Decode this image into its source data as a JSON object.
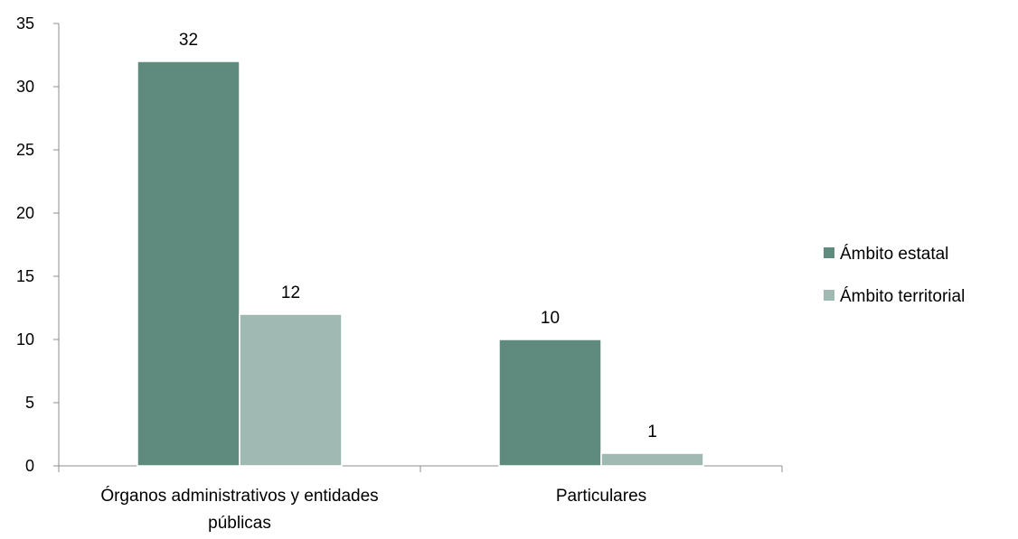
{
  "chart_data": {
    "type": "bar",
    "categories": [
      "Órganos administrativos y entidades públicas",
      "Particulares"
    ],
    "category_lines": [
      [
        "Órganos administrativos y entidades",
        "públicas"
      ],
      [
        "Particulares"
      ]
    ],
    "series": [
      {
        "name": "Ámbito estatal",
        "values": [
          32,
          10
        ],
        "color": "#5e8b7e"
      },
      {
        "name": "Ámbito territorial",
        "values": [
          12,
          1
        ],
        "color": "#a0b9b3"
      }
    ],
    "title": "",
    "xlabel": "",
    "ylabel": "",
    "ylim": [
      0,
      35
    ],
    "yticks": [
      0,
      5,
      10,
      15,
      20,
      25,
      30,
      35
    ],
    "grid": false,
    "legend_position": "right",
    "data_labels": true
  }
}
